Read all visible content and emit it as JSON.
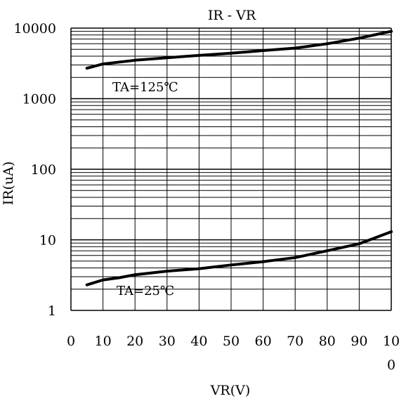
{
  "chart_data": {
    "type": "line",
    "title": "IR - VR",
    "xlabel": "VR(V)",
    "ylabel": "IR(uA)",
    "x_scale": "linear",
    "y_scale": "log",
    "xlim": [
      0,
      100
    ],
    "ylim": [
      1,
      10000
    ],
    "x_ticks": [
      "0",
      "10",
      "20",
      "30",
      "40",
      "50",
      "60",
      "70",
      "80",
      "90",
      "100"
    ],
    "y_ticks": [
      "1",
      "10",
      "100",
      "1000",
      "10000"
    ],
    "grid": true,
    "series": [
      {
        "name": "TA=125℃",
        "x": [
          5,
          10,
          20,
          30,
          40,
          50,
          60,
          70,
          80,
          90,
          100
        ],
        "y": [
          2700,
          3100,
          3500,
          3800,
          4100,
          4400,
          4800,
          5200,
          6000,
          7200,
          9000
        ]
      },
      {
        "name": "TA=25℃",
        "x": [
          5,
          10,
          15,
          20,
          30,
          40,
          50,
          60,
          70,
          80,
          90,
          100
        ],
        "y": [
          2.3,
          2.7,
          2.9,
          3.2,
          3.6,
          3.9,
          4.4,
          4.9,
          5.6,
          7.0,
          8.8,
          13
        ]
      }
    ],
    "line_color": "#000000"
  }
}
